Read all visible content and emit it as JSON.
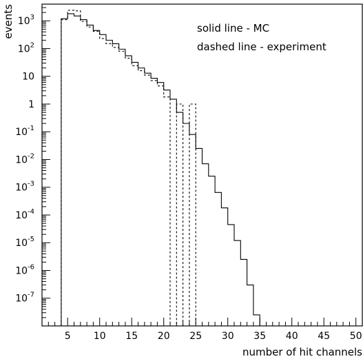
{
  "chart_data": {
    "type": "line",
    "xlabel": "number of hit channels",
    "ylabel": "events",
    "xlim": [
      1,
      51
    ],
    "ylim": [
      1e-08,
      4000
    ],
    "log_y": true,
    "grid": false,
    "x_ticks": [
      5,
      10,
      15,
      20,
      25,
      30,
      35,
      40,
      45,
      50
    ],
    "y_ticks": [
      {
        "base": "10",
        "exp": "3"
      },
      {
        "base": "10",
        "exp": "2"
      },
      {
        "base": "10",
        "exp": ""
      },
      {
        "base": "1",
        "exp": ""
      },
      {
        "base": "10",
        "exp": "-1"
      },
      {
        "base": "10",
        "exp": "-2"
      },
      {
        "base": "10",
        "exp": "-3"
      },
      {
        "base": "10",
        "exp": "-4"
      },
      {
        "base": "10",
        "exp": "-5"
      },
      {
        "base": "10",
        "exp": "-6"
      },
      {
        "base": "10",
        "exp": "-7"
      }
    ],
    "legend": [
      "solid line - MC",
      "dashed line - experiment"
    ],
    "series": [
      {
        "style": "solid",
        "bin_edges": [
          4,
          5,
          6,
          7,
          8,
          9,
          10,
          11,
          12,
          13,
          14,
          15,
          16,
          17,
          18,
          19,
          20,
          21,
          22,
          23,
          24,
          25,
          26,
          27,
          28,
          29,
          30,
          31,
          32,
          33,
          34,
          35
        ],
        "values": [
          1200,
          1800,
          1500,
          1100,
          700,
          450,
          320,
          200,
          150,
          95,
          55,
          32,
          20,
          13,
          8.5,
          6,
          3.2,
          1.5,
          0.5,
          0.2,
          0.08,
          0.025,
          0.007,
          0.0025,
          0.00065,
          0.00018,
          4.5e-05,
          1.2e-05,
          2.5e-06,
          3e-07,
          2.5e-08
        ]
      },
      {
        "style": "dashed",
        "bin_edges": [
          4,
          5,
          6,
          7,
          8,
          9,
          10,
          11,
          12,
          13,
          14,
          15,
          16,
          17,
          18,
          19,
          20,
          21,
          22,
          23,
          24,
          25
        ],
        "values": [
          1100,
          2400,
          2300,
          950,
          600,
          420,
          230,
          150,
          110,
          80,
          45,
          24,
          16,
          11,
          7,
          4.5,
          1.8,
          0,
          1,
          0,
          1,
          0
        ]
      }
    ]
  }
}
